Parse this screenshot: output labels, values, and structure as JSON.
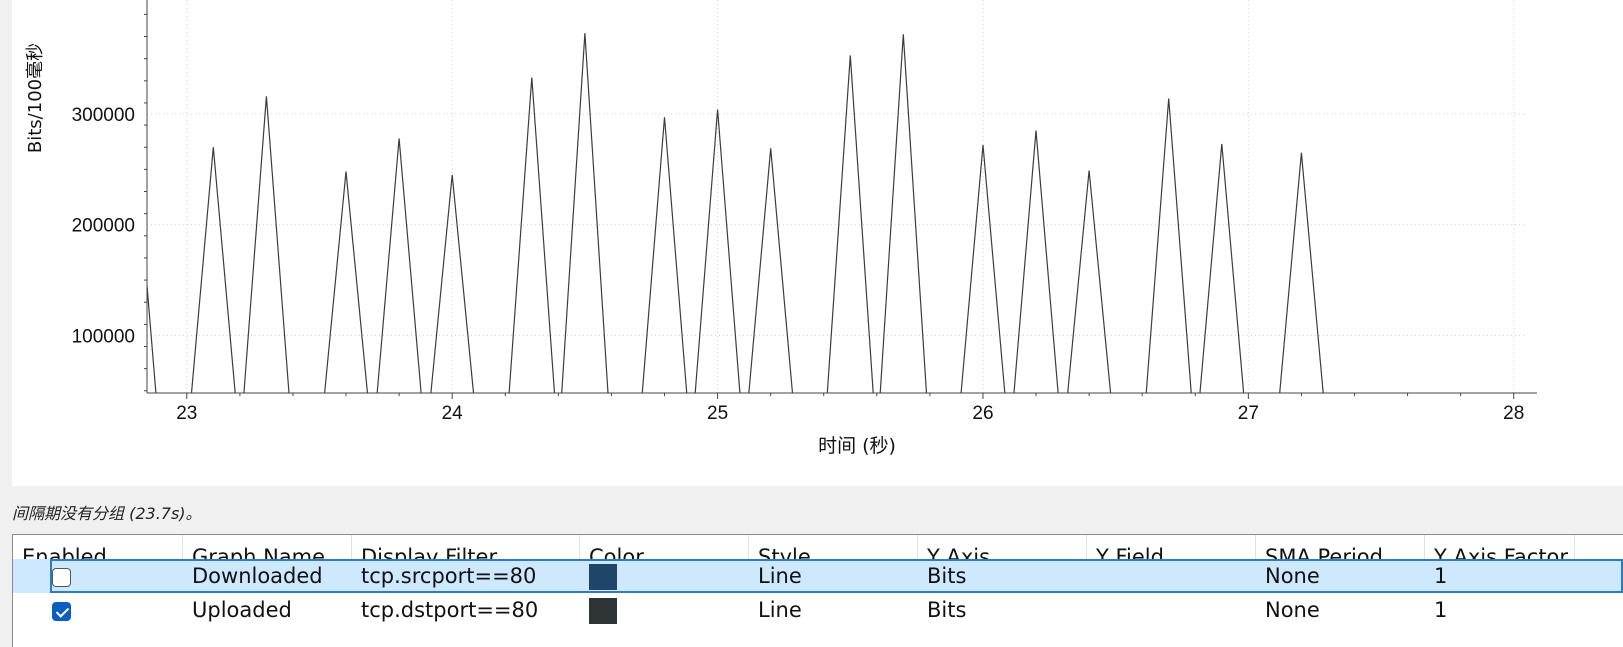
{
  "chart_data": {
    "type": "line",
    "xlabel": "时间 (秒)",
    "ylabel": "Bits/100毫秒",
    "xlim": [
      22.85,
      28.05
    ],
    "ylim": [
      48000,
      403000
    ],
    "x_ticks": [
      23,
      24,
      25,
      26,
      27,
      28
    ],
    "x_tick_labels": [
      "23",
      "24",
      "25",
      "26",
      "27",
      "28"
    ],
    "y_ticks": [
      100000,
      200000,
      300000
    ],
    "y_tick_labels": [
      "100000",
      "200000",
      "300000"
    ],
    "grid": true,
    "series": [
      {
        "color": "#3c3c3c",
        "x": [
          22.85,
          22.9,
          23.0,
          23.1,
          23.2,
          23.3,
          23.4,
          23.5,
          23.6,
          23.7,
          23.8,
          23.9,
          24.0,
          24.1,
          24.2,
          24.3,
          24.4,
          24.5,
          24.6,
          24.7,
          24.8,
          24.9,
          25.0,
          25.1,
          25.2,
          25.3,
          25.4,
          25.5,
          25.6,
          25.7,
          25.8,
          25.9,
          26.0,
          26.1,
          26.2,
          26.3,
          26.4,
          26.5,
          26.6,
          26.7,
          26.8,
          26.9,
          27.0,
          27.1,
          27.2,
          27.3,
          28.05
        ],
        "y": [
          145000,
          0,
          0,
          270000,
          0,
          316000,
          0,
          0,
          248000,
          0,
          278000,
          0,
          245000,
          0,
          0,
          333000,
          0,
          373000,
          0,
          0,
          297000,
          0,
          304000,
          0,
          269000,
          0,
          0,
          353000,
          0,
          372000,
          0,
          0,
          272000,
          0,
          285000,
          0,
          249000,
          0,
          0,
          314000,
          0,
          273000,
          0,
          0,
          265000,
          0,
          0
        ]
      }
    ]
  },
  "status": {
    "text": "间隔期没有分组 (23.7s)。"
  },
  "table": {
    "headers": [
      "Enabled",
      "Graph Name",
      "Display Filter",
      "Color",
      "Style",
      "Y Axis",
      "Y Field",
      "SMA Period",
      "Y Axis Factor"
    ],
    "rows": [
      {
        "enabled": false,
        "name": "Downloaded",
        "filter": "tcp.srcport==80",
        "color": "#1f4568",
        "style": "Line",
        "y_axis": "Bits",
        "y_field": "",
        "sma": "None",
        "factor": "1",
        "selected": true
      },
      {
        "enabled": true,
        "name": "Uploaded",
        "filter": "tcp.dstport==80",
        "color": "#2e3436",
        "style": "Line",
        "y_axis": "Bits",
        "y_field": "",
        "sma": "None",
        "factor": "1",
        "selected": false
      }
    ]
  }
}
